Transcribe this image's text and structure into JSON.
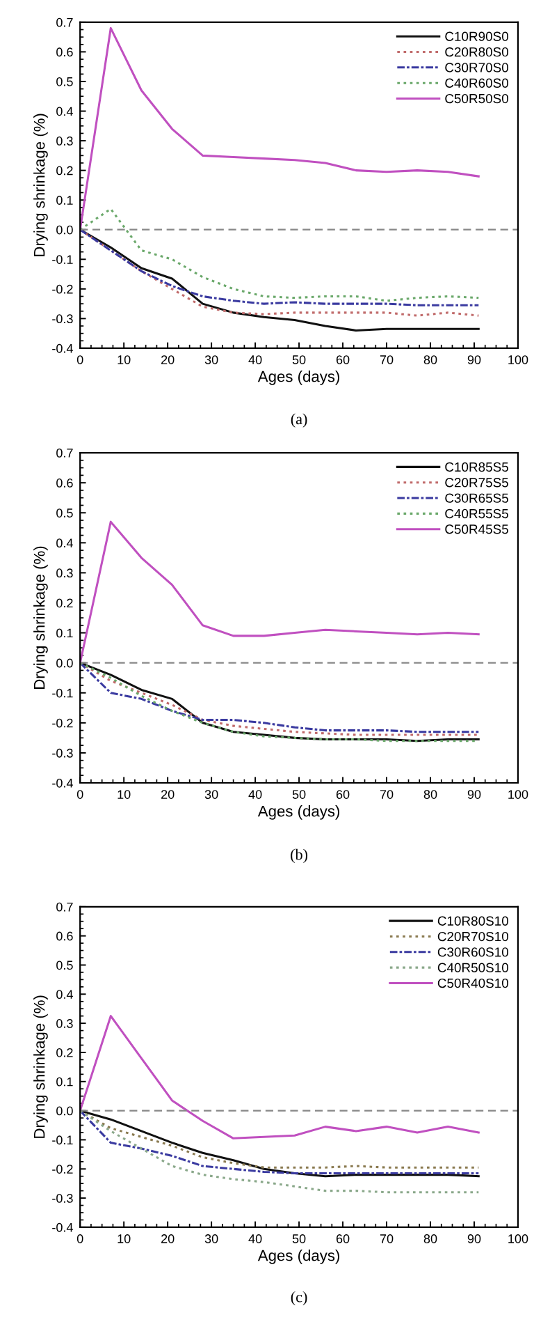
{
  "chart_data": [
    {
      "type": "line",
      "xlabel": "Ages (days)",
      "ylabel": "Drying shrinkage (%)",
      "annotations": [
        "(a)"
      ],
      "x": [
        0,
        7,
        14,
        21,
        28,
        35,
        42,
        49,
        56,
        63,
        70,
        77,
        84,
        91
      ],
      "series": [
        {
          "name": "C10R90S0",
          "color": "#111111",
          "line_style": "solid",
          "values": [
            0,
            -0.06,
            -0.13,
            -0.165,
            -0.25,
            -0.28,
            -0.295,
            -0.305,
            -0.325,
            -0.34,
            -0.335,
            -0.335,
            -0.335,
            -0.335
          ]
        },
        {
          "name": "C20R80S0",
          "color": "#c06a6a",
          "line_style": "dotted",
          "values": [
            0,
            -0.07,
            -0.14,
            -0.2,
            -0.26,
            -0.28,
            -0.285,
            -0.28,
            -0.28,
            -0.28,
            -0.28,
            -0.29,
            -0.28,
            -0.29
          ]
        },
        {
          "name": "C30R70S0",
          "color": "#3a3aa0",
          "line_style": "dashdot",
          "values": [
            0,
            -0.07,
            -0.14,
            -0.19,
            -0.225,
            -0.24,
            -0.25,
            -0.245,
            -0.25,
            -0.25,
            -0.25,
            -0.255,
            -0.255,
            -0.255
          ]
        },
        {
          "name": "C40R60S0",
          "color": "#6aa86a",
          "line_style": "dotted",
          "values": [
            0,
            0.07,
            -0.07,
            -0.1,
            -0.16,
            -0.2,
            -0.225,
            -0.23,
            -0.225,
            -0.225,
            -0.24,
            -0.23,
            -0.225,
            -0.23
          ]
        },
        {
          "name": "C50R50S0",
          "color": "#c050c0",
          "line_style": "solid",
          "values": [
            0,
            0.68,
            0.47,
            0.34,
            0.25,
            0.245,
            0.24,
            0.235,
            0.225,
            0.2,
            0.195,
            0.2,
            0.195,
            0.18
          ]
        }
      ],
      "xlim": [
        0,
        100
      ],
      "xticks": [
        0,
        10,
        20,
        30,
        40,
        50,
        60,
        70,
        80,
        90,
        100
      ],
      "ylim": [
        -0.4,
        0.7
      ],
      "yticks": [
        {
          "value": -0.4,
          "label": "-0.4"
        },
        {
          "value": -0.3,
          "label": "-0.3"
        },
        {
          "value": -0.2,
          "label": "-0.2"
        },
        {
          "value": -0.1,
          "label": "-0.1"
        },
        {
          "value": 0,
          "label": "0.0"
        },
        {
          "value": 0.1,
          "label": "0.1"
        },
        {
          "value": 0.2,
          "label": "0.2"
        },
        {
          "value": 0.3,
          "label": "0.3"
        },
        {
          "value": 0.4,
          "label": "0.4"
        },
        {
          "value": 0.5,
          "label": "0.5"
        },
        {
          "value": 0.6,
          "label": "0.6"
        },
        {
          "value": 0.7,
          "label": "0.7"
        }
      ],
      "ref_lines": [
        {
          "axis": "y",
          "value": 0,
          "color": "#888888",
          "line_style": "dashed"
        }
      ],
      "legend": "top right",
      "grid": false
    },
    {
      "type": "line",
      "xlabel": "Ages (days)",
      "ylabel": "Drying shrinkage (%)",
      "annotations": [
        "(b)"
      ],
      "x": [
        0,
        7,
        14,
        21,
        28,
        35,
        42,
        49,
        56,
        63,
        70,
        77,
        84,
        91
      ],
      "series": [
        {
          "name": "C10R85S5",
          "color": "#111111",
          "line_style": "solid",
          "values": [
            0,
            -0.04,
            -0.09,
            -0.12,
            -0.2,
            -0.23,
            -0.24,
            -0.25,
            -0.255,
            -0.255,
            -0.255,
            -0.26,
            -0.255,
            -0.255
          ]
        },
        {
          "name": "C20R75S5",
          "color": "#c06a6a",
          "line_style": "dotted",
          "values": [
            0,
            -0.06,
            -0.1,
            -0.14,
            -0.19,
            -0.21,
            -0.22,
            -0.23,
            -0.235,
            -0.24,
            -0.24,
            -0.24,
            -0.24,
            -0.24
          ]
        },
        {
          "name": "C30R65S5",
          "color": "#3a3aa0",
          "line_style": "dashdot",
          "values": [
            0,
            -0.1,
            -0.12,
            -0.16,
            -0.19,
            -0.19,
            -0.2,
            -0.215,
            -0.225,
            -0.225,
            -0.225,
            -0.23,
            -0.23,
            -0.23
          ]
        },
        {
          "name": "C40R55S5",
          "color": "#6aa86a",
          "line_style": "dotted",
          "values": [
            0,
            -0.05,
            -0.11,
            -0.16,
            -0.2,
            -0.23,
            -0.245,
            -0.25,
            -0.255,
            -0.255,
            -0.26,
            -0.26,
            -0.26,
            -0.26
          ]
        },
        {
          "name": "C50R45S5",
          "color": "#c050c0",
          "line_style": "solid",
          "values": [
            0,
            0.47,
            0.35,
            0.26,
            0.125,
            0.09,
            0.09,
            0.1,
            0.11,
            0.105,
            0.1,
            0.095,
            0.1,
            0.095
          ]
        }
      ],
      "xlim": [
        0,
        100
      ],
      "xticks": [
        0,
        10,
        20,
        30,
        40,
        50,
        60,
        70,
        80,
        90,
        100
      ],
      "ylim": [
        -0.4,
        0.7
      ],
      "yticks": [
        {
          "value": -0.4,
          "label": "-0.4"
        },
        {
          "value": -0.3,
          "label": "-0.3"
        },
        {
          "value": -0.2,
          "label": "-0.2"
        },
        {
          "value": -0.1,
          "label": "-0.1"
        },
        {
          "value": 0,
          "label": "0.0"
        },
        {
          "value": 0.1,
          "label": "0.1"
        },
        {
          "value": 0.2,
          "label": "0.2"
        },
        {
          "value": 0.3,
          "label": "0.3"
        },
        {
          "value": 0.4,
          "label": "0.4"
        },
        {
          "value": 0.5,
          "label": "0.5"
        },
        {
          "value": 0.6,
          "label": "0.6"
        },
        {
          "value": 0.7,
          "label": "0.7"
        }
      ],
      "ref_lines": [
        {
          "axis": "y",
          "value": 0,
          "color": "#888888",
          "line_style": "dashed"
        }
      ],
      "legend": "top right",
      "grid": false
    },
    {
      "type": "line",
      "xlabel": "Ages (days)",
      "ylabel": "Drying shrinkage (%)",
      "annotations": [
        "(c)"
      ],
      "x": [
        0,
        7,
        14,
        21,
        28,
        35,
        42,
        49,
        56,
        63,
        70,
        77,
        84,
        91
      ],
      "series": [
        {
          "name": "C10R80S10",
          "color": "#111111",
          "line_style": "solid",
          "values": [
            0,
            -0.03,
            -0.07,
            -0.11,
            -0.145,
            -0.17,
            -0.2,
            -0.215,
            -0.225,
            -0.22,
            -0.22,
            -0.22,
            -0.22,
            -0.225
          ]
        },
        {
          "name": "C20R70S10",
          "color": "#8a7a50",
          "line_style": "dotted",
          "values": [
            0,
            -0.06,
            -0.09,
            -0.12,
            -0.16,
            -0.18,
            -0.195,
            -0.195,
            -0.195,
            -0.19,
            -0.195,
            -0.195,
            -0.195,
            -0.195
          ]
        },
        {
          "name": "C30R60S10",
          "color": "#3a3aa0",
          "line_style": "dashdot",
          "values": [
            0,
            -0.11,
            -0.13,
            -0.155,
            -0.19,
            -0.2,
            -0.21,
            -0.215,
            -0.215,
            -0.215,
            -0.215,
            -0.215,
            -0.215,
            -0.215
          ]
        },
        {
          "name": "C40R50S10",
          "color": "#8aa88a",
          "line_style": "dotted",
          "values": [
            0,
            -0.07,
            -0.13,
            -0.19,
            -0.22,
            -0.235,
            -0.245,
            -0.26,
            -0.275,
            -0.275,
            -0.28,
            -0.28,
            -0.28,
            -0.28
          ]
        },
        {
          "name": "C50R40S10",
          "color": "#c050c0",
          "line_style": "solid",
          "values": [
            0,
            0.325,
            0.18,
            0.035,
            -0.035,
            -0.095,
            -0.09,
            -0.085,
            -0.055,
            -0.07,
            -0.055,
            -0.075,
            -0.055,
            -0.075
          ]
        }
      ],
      "xlim": [
        0,
        100
      ],
      "xticks": [
        0,
        10,
        20,
        30,
        40,
        50,
        60,
        70,
        80,
        90,
        100
      ],
      "ylim": [
        -0.4,
        0.7
      ],
      "yticks": [
        {
          "value": -0.4,
          "label": "-0.4"
        },
        {
          "value": -0.3,
          "label": "-0.3"
        },
        {
          "value": -0.2,
          "label": "-0.2"
        },
        {
          "value": -0.1,
          "label": "-0.1"
        },
        {
          "value": 0,
          "label": "0.0"
        },
        {
          "value": 0.1,
          "label": "0.1"
        },
        {
          "value": 0.2,
          "label": "0.2"
        },
        {
          "value": 0.3,
          "label": "0.3"
        },
        {
          "value": 0.4,
          "label": "0.4"
        },
        {
          "value": 0.5,
          "label": "0.5"
        },
        {
          "value": 0.6,
          "label": "0.6"
        },
        {
          "value": 0.7,
          "label": "0.7"
        }
      ],
      "ref_lines": [
        {
          "axis": "y",
          "value": 0,
          "color": "#888888",
          "line_style": "dashed"
        }
      ],
      "legend": "top right",
      "grid": false
    }
  ]
}
